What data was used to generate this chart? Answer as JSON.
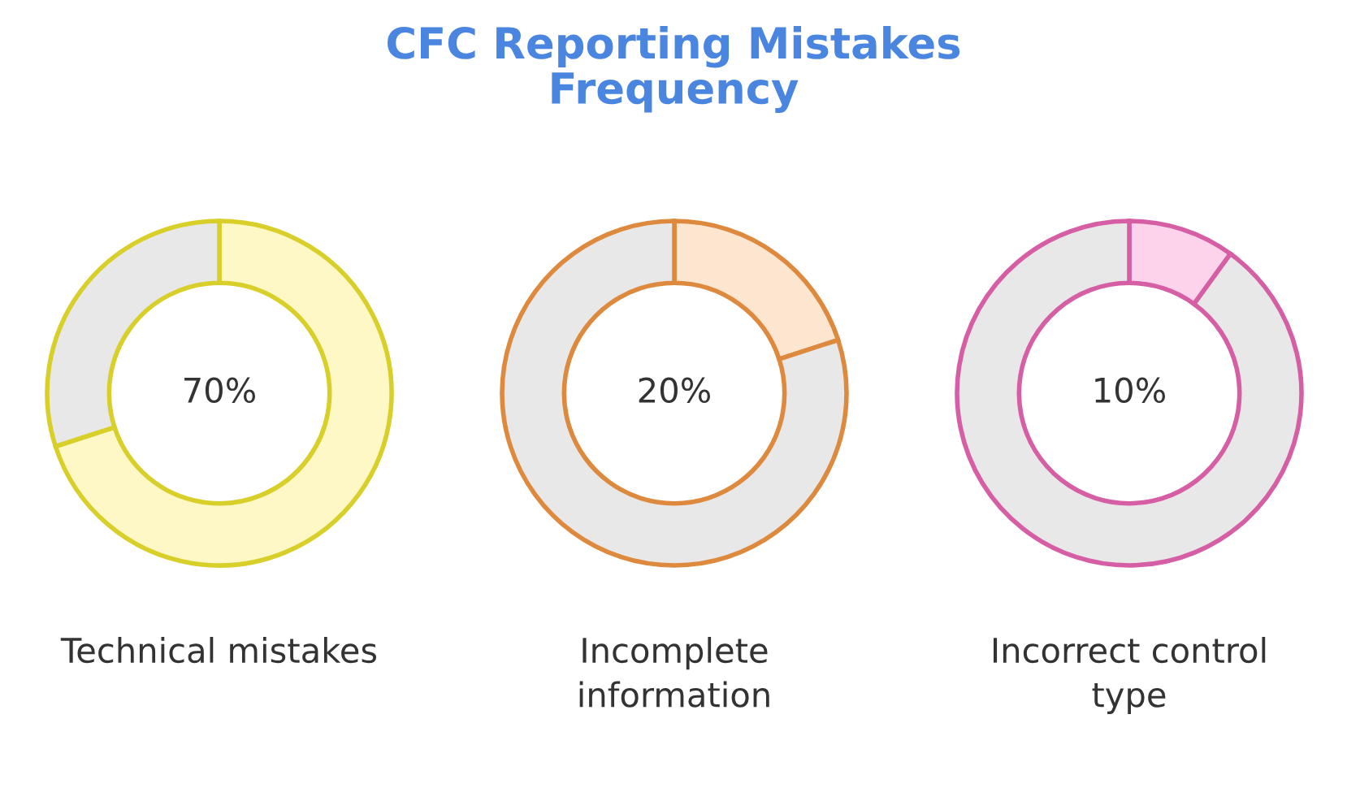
{
  "chart_data": [
    {
      "type": "donut",
      "xlabel": "Technical mistakes",
      "categories": [
        null,
        null
      ],
      "series": [
        {
          "color": "#d9cf2a",
          "colors": [
            "#fdf8c6",
            "#e8e8e8"
          ],
          "values": [
            70,
            30
          ],
          "value_labels": [
            "70%",
            null
          ]
        }
      ]
    },
    {
      "type": "donut",
      "title": "CFC Reporting Mistakes\nFrequency",
      "xlabel": "Incomplete\ninformation",
      "categories": [
        null,
        null
      ],
      "series": [
        {
          "color": "#de8a3e",
          "colors": [
            "#fde6d0",
            "#e8e8e8"
          ],
          "values": [
            20,
            80
          ],
          "value_labels": [
            "20%",
            null
          ]
        }
      ]
    },
    {
      "type": "donut",
      "xlabel": "Incorrect control\ntype",
      "categories": [
        null,
        null
      ],
      "series": [
        {
          "color": "#d65ea4",
          "colors": [
            "#fdd3ec",
            "#e8e8e8"
          ],
          "values": [
            10,
            90
          ],
          "value_labels": [
            "10%",
            null
          ]
        }
      ]
    }
  ]
}
